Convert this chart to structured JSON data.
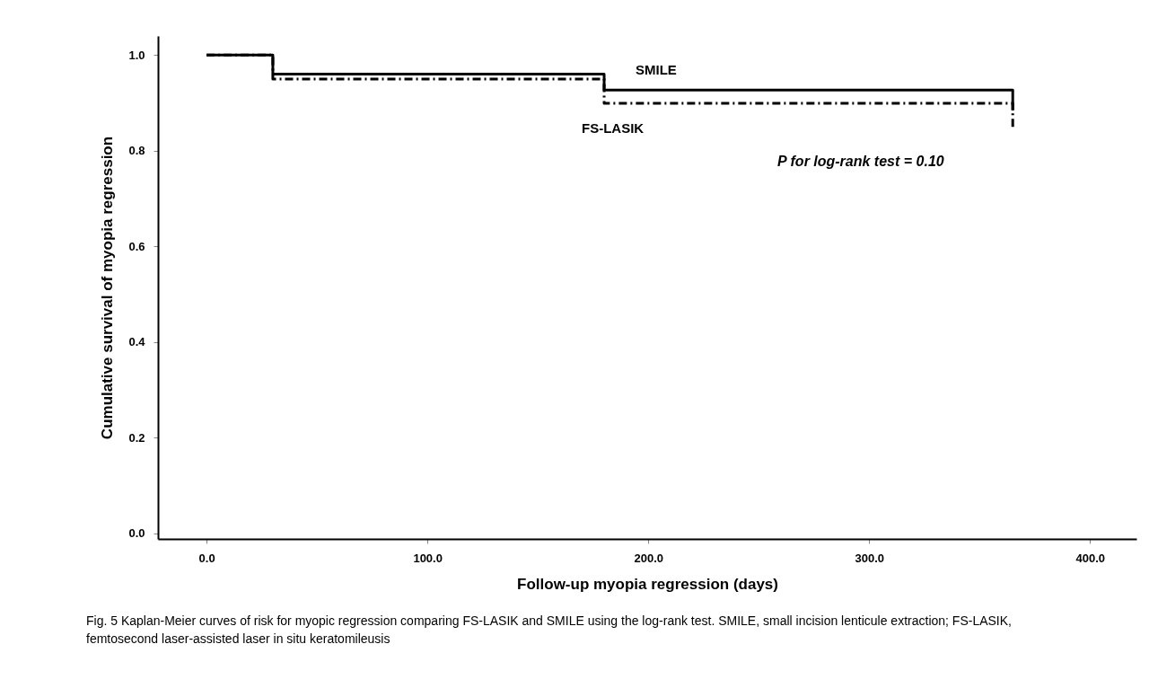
{
  "chart_data": {
    "type": "step",
    "xlabel": "Follow-up myopia regression (days)",
    "ylabel": "Cumulative survival of myopia regression",
    "series": [
      {
        "name": "SMILE",
        "color": "#000000",
        "line_style": "solid",
        "x": [
          0,
          30,
          180,
          365
        ],
        "values": [
          1.0,
          0.96,
          0.927,
          0.884
        ]
      },
      {
        "name": "FS-LASIK",
        "color": "#000000",
        "line_style": "dashed",
        "x": [
          0,
          30,
          180,
          365
        ],
        "values": [
          1.0,
          0.95,
          0.899,
          0.85
        ]
      }
    ],
    "xlim": [
      -22,
      421
    ],
    "xticks": [
      {
        "value": 0,
        "label": "0.0"
      },
      {
        "value": 100,
        "label": "100.0"
      },
      {
        "value": 200,
        "label": "200.0"
      },
      {
        "value": 300,
        "label": "300.0"
      },
      {
        "value": 400,
        "label": "400.0"
      }
    ],
    "ylim": [
      -0.012,
      1.04
    ],
    "yticks": [
      {
        "value": 0,
        "label": "0.0"
      },
      {
        "value": 0.2,
        "label": "0.2"
      },
      {
        "value": 0.4,
        "label": "0.4"
      },
      {
        "value": 0.6,
        "label": "0.6"
      },
      {
        "value": 0.8,
        "label": "0.8"
      },
      {
        "value": 1.0,
        "label": "1.0"
      }
    ],
    "grid": false,
    "annotations": [
      "P for log-rank test = 0.10",
      "Fig. 5  Kaplan-Meier curves of risk for myopic regression comparing FS-LASIK and SMILE using the log-rank test. SMILE, small incision lenticule extraction; FS-LASIK, femtosecond laser-assisted laser in situ keratomileusis"
    ]
  }
}
